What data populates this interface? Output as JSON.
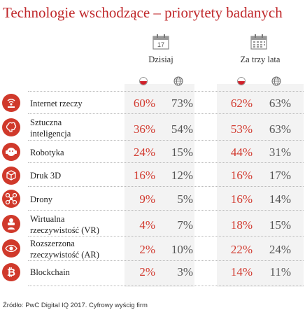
{
  "title": "Technologie wschodzące – priorytety badanych",
  "columns": [
    {
      "label": "Dzisiaj",
      "calendar_day": "17"
    },
    {
      "label": "Za trzy lata",
      "calendar_day": ""
    }
  ],
  "colors": {
    "accent": "#c0282b",
    "value_red": "#d23a2f",
    "value_grey": "#555555",
    "panel": "#f3f3f3"
  },
  "rows": [
    {
      "label_lines": [
        "Internet rzeczy"
      ],
      "icon": "wifi-tower-icon",
      "today_pl": "60%",
      "today_world": "73%",
      "future_pl": "62%",
      "future_world": "63%"
    },
    {
      "label_lines": [
        "Sztuczna",
        "inteligencja"
      ],
      "icon": "brain-icon",
      "today_pl": "36%",
      "today_world": "54%",
      "future_pl": "53%",
      "future_world": "63%"
    },
    {
      "label_lines": [
        "Robotyka"
      ],
      "icon": "robot-head-icon",
      "today_pl": "24%",
      "today_world": "15%",
      "future_pl": "44%",
      "future_world": "31%"
    },
    {
      "label_lines": [
        "Druk 3D"
      ],
      "icon": "cube-print-icon",
      "today_pl": "16%",
      "today_world": "12%",
      "future_pl": "16%",
      "future_world": "17%"
    },
    {
      "label_lines": [
        "Drony"
      ],
      "icon": "drone-icon",
      "today_pl": "9%",
      "today_world": "5%",
      "future_pl": "16%",
      "future_world": "14%"
    },
    {
      "label_lines": [
        "Wirtualna",
        "rzeczywistość (VR)"
      ],
      "icon": "vr-headset-icon",
      "today_pl": "4%",
      "today_world": "7%",
      "future_pl": "18%",
      "future_world": "15%"
    },
    {
      "label_lines": [
        "Rozszerzona",
        "rzeczywistość (AR)"
      ],
      "icon": "ar-eye-icon",
      "today_pl": "2%",
      "today_world": "10%",
      "future_pl": "22%",
      "future_world": "24%"
    },
    {
      "label_lines": [
        "Blockchain"
      ],
      "icon": "bitcoin-icon",
      "today_pl": "2%",
      "today_world": "3%",
      "future_pl": "14%",
      "future_world": "11%"
    }
  ],
  "source": "Źródło: PwC Digital IQ 2017. Cyfrowy wyścig firm",
  "chart_data": {
    "type": "table",
    "title": "Technologie wschodzące – priorytety badanych",
    "column_groups": [
      "Dzisiaj",
      "Za trzy lata"
    ],
    "categories": [
      "Internet rzeczy",
      "Sztuczna inteligencja",
      "Robotyka",
      "Druk 3D",
      "Drony",
      "Wirtualna rzeczywistość (VR)",
      "Rozszerzona rzeczywistość (AR)",
      "Blockchain"
    ],
    "series": [
      {
        "values": [
          60,
          36,
          24,
          16,
          9,
          4,
          2,
          2
        ]
      },
      {
        "values": [
          73,
          54,
          15,
          12,
          5,
          7,
          10,
          3
        ]
      },
      {
        "values": [
          62,
          53,
          44,
          16,
          16,
          18,
          22,
          14
        ]
      },
      {
        "values": [
          63,
          63,
          31,
          17,
          14,
          15,
          24,
          11
        ]
      }
    ]
  }
}
